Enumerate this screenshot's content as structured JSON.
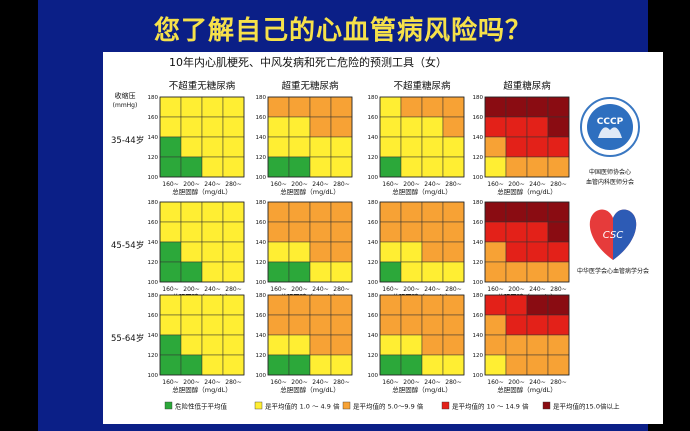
{
  "slide": {
    "title": "您了解自己的心血管病风险吗？"
  },
  "chart_data": {
    "type": "heatmap",
    "title": "10年内心肌梗死、中风发病和死亡危险的预测工具（女）",
    "ylabel": "收缩压",
    "ylabel_unit": "(mmHg)",
    "xlabel": "总胆固醇（mg/dL）",
    "x_ticks": [
      "160~",
      "200~",
      "240~",
      "280~"
    ],
    "y_ticks": [
      "100",
      "120",
      "140",
      "160",
      "180"
    ],
    "columns": [
      "不超重无糖尿病",
      "超重无糖尿病",
      "不超重糖尿病",
      "超重糖尿病"
    ],
    "rows": [
      "35-44岁",
      "45-54岁",
      "55-64岁"
    ],
    "levels": [
      {
        "label": "危险性低于平均值",
        "color": "#2ca83a"
      },
      {
        "label": "是平均值的 1.0 ～ 4.9 倍",
        "color": "#ffee33"
      },
      {
        "label": "是平均值的  5.0～9.9 倍",
        "color": "#f7a235"
      },
      {
        "label": "是平均值的 10 ～ 14.9 倍",
        "color": "#e32119"
      },
      {
        "label": "是平均值的15.0倍以上",
        "color": "#8a0c12"
      }
    ],
    "grids": [
      [
        [
          [
            1,
            1,
            1,
            1
          ],
          [
            1,
            1,
            1,
            1
          ],
          [
            0,
            1,
            1,
            1
          ],
          [
            0,
            0,
            1,
            1
          ]
        ],
        [
          [
            2,
            2,
            2,
            2
          ],
          [
            1,
            1,
            2,
            2
          ],
          [
            1,
            1,
            1,
            1
          ],
          [
            0,
            0,
            1,
            1
          ]
        ],
        [
          [
            1,
            2,
            2,
            2
          ],
          [
            1,
            1,
            1,
            2
          ],
          [
            1,
            1,
            1,
            1
          ],
          [
            0,
            1,
            1,
            1
          ]
        ],
        [
          [
            4,
            4,
            4,
            4
          ],
          [
            3,
            3,
            3,
            4
          ],
          [
            2,
            3,
            3,
            3
          ],
          [
            1,
            2,
            2,
            2
          ]
        ]
      ],
      [
        [
          [
            1,
            1,
            1,
            1
          ],
          [
            1,
            1,
            1,
            1
          ],
          [
            0,
            1,
            1,
            1
          ],
          [
            0,
            0,
            1,
            1
          ]
        ],
        [
          [
            2,
            2,
            2,
            2
          ],
          [
            2,
            2,
            2,
            2
          ],
          [
            1,
            1,
            2,
            2
          ],
          [
            0,
            0,
            1,
            1
          ]
        ],
        [
          [
            2,
            2,
            2,
            2
          ],
          [
            2,
            2,
            2,
            2
          ],
          [
            1,
            1,
            2,
            2
          ],
          [
            0,
            1,
            1,
            1
          ]
        ],
        [
          [
            4,
            4,
            4,
            4
          ],
          [
            3,
            3,
            3,
            4
          ],
          [
            2,
            3,
            3,
            3
          ],
          [
            2,
            2,
            2,
            2
          ]
        ]
      ],
      [
        [
          [
            1,
            1,
            1,
            1
          ],
          [
            1,
            1,
            1,
            1
          ],
          [
            0,
            1,
            1,
            1
          ],
          [
            0,
            0,
            1,
            1
          ]
        ],
        [
          [
            2,
            2,
            2,
            2
          ],
          [
            2,
            2,
            2,
            2
          ],
          [
            1,
            1,
            2,
            2
          ],
          [
            0,
            0,
            1,
            1
          ]
        ],
        [
          [
            2,
            2,
            2,
            2
          ],
          [
            2,
            2,
            2,
            2
          ],
          [
            1,
            1,
            2,
            2
          ],
          [
            0,
            0,
            1,
            1
          ]
        ],
        [
          [
            3,
            3,
            4,
            4
          ],
          [
            2,
            3,
            3,
            3
          ],
          [
            2,
            2,
            2,
            2
          ],
          [
            1,
            2,
            2,
            2
          ]
        ]
      ]
    ]
  },
  "logos": {
    "ccp_text": "CCCP",
    "ccp_caption_line1": "中国医师协会心",
    "ccp_caption_line2": "血管内科医师分会",
    "csc_text": "CSC",
    "csc_caption": "中华医学会心血管病学分会"
  }
}
